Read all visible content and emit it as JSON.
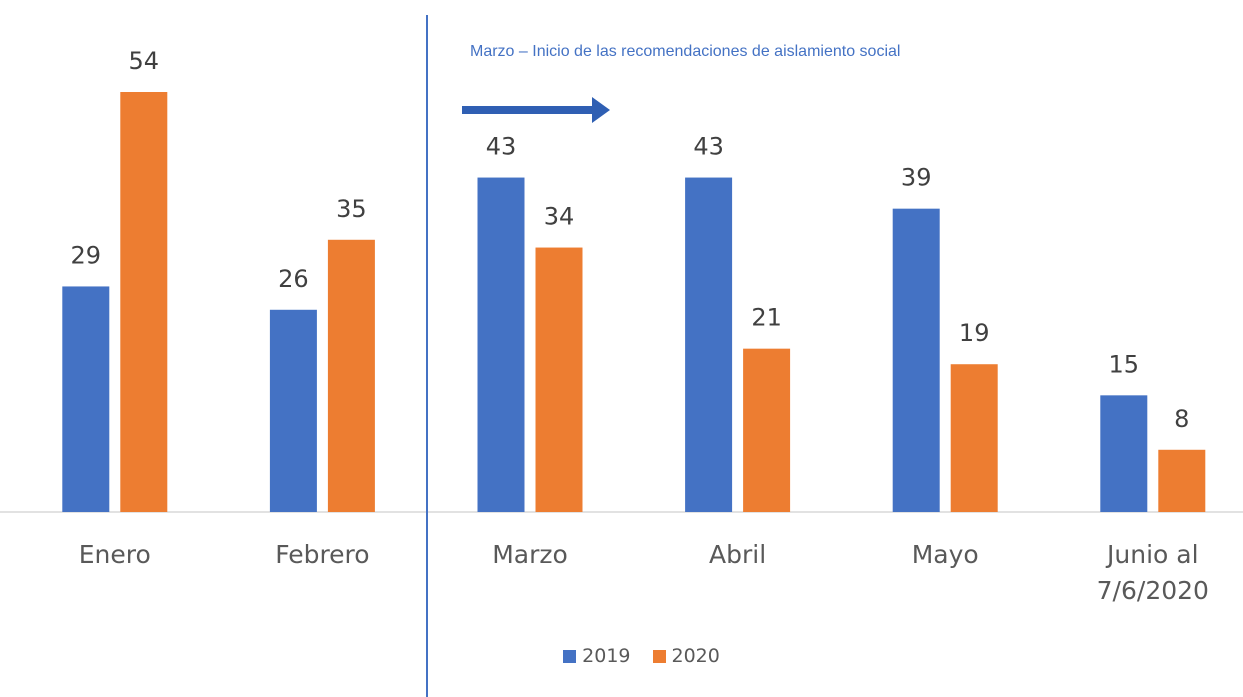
{
  "chart_data": {
    "type": "bar",
    "annotation": "Marzo – Inicio de las recomendaciones de aislamiento social",
    "categories": [
      "Enero",
      "Febrero",
      "Marzo",
      "Abril",
      "Mayo",
      "Junio al\n7/6/2020"
    ],
    "series": [
      {
        "name": "2019",
        "color": "#4472c4",
        "values": [
          29,
          26,
          43,
          43,
          39,
          15
        ]
      },
      {
        "name": "2020",
        "color": "#ed7d31",
        "values": [
          54,
          35,
          34,
          21,
          19,
          8
        ]
      }
    ],
    "grid": false
  }
}
